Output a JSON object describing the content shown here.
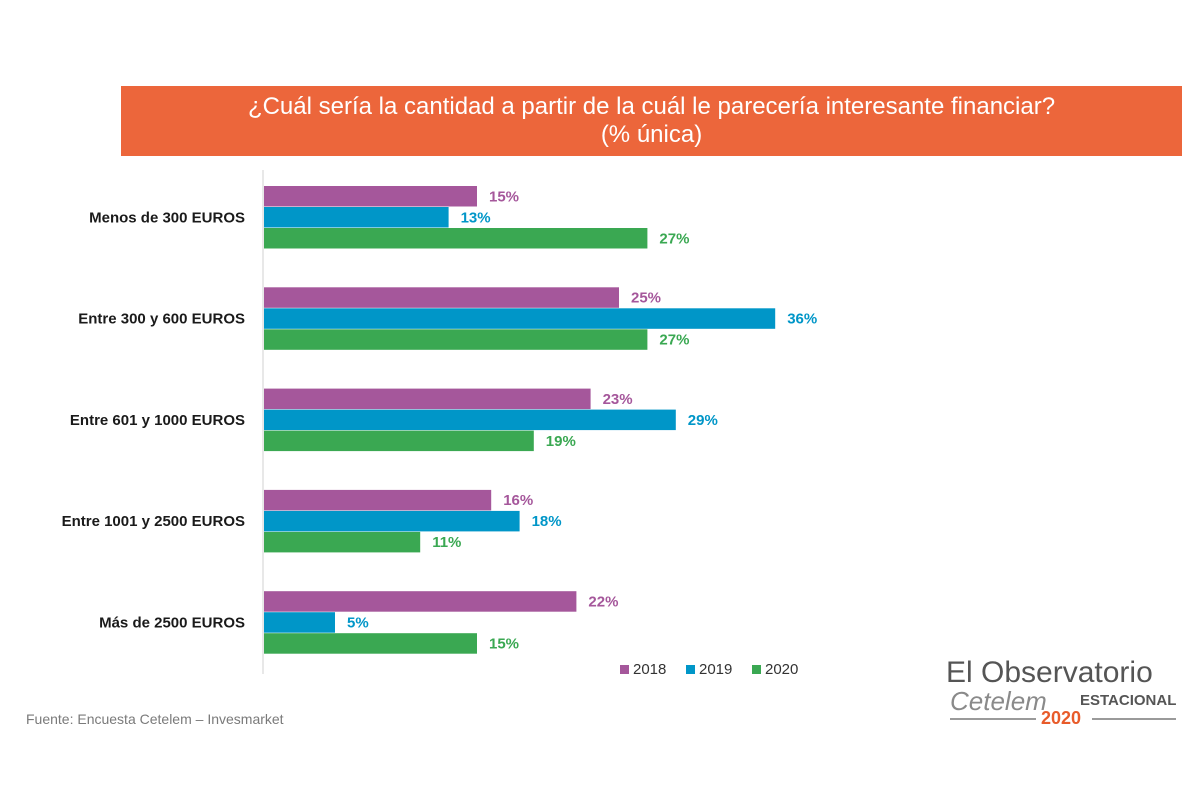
{
  "header": {
    "title_line1": "¿Cuál sería la cantidad a partir de la cuál le parecería interesante financiar?",
    "title_line2": "(% única)"
  },
  "source": "Fuente: Encuesta Cetelem – Invesmarket",
  "logo": {
    "line1": "El Observatorio",
    "line2": "Cetelem",
    "line3": "ESTACIONAL",
    "year": "2020"
  },
  "colors": {
    "banner": "#ec663b",
    "s2018": "#a5579b",
    "s2019": "#0096c8",
    "s2020": "#3aa852"
  },
  "chart_data": {
    "type": "bar",
    "orientation": "horizontal",
    "categories": [
      "Menos de 300 EUROS",
      "Entre 300 y 600 EUROS",
      "Entre 601 y 1000 EUROS",
      "Entre 1001 y 2500 EUROS",
      "Más de 2500 EUROS"
    ],
    "series": [
      {
        "name": "2018",
        "values": [
          15,
          25,
          23,
          16,
          22
        ],
        "labels": [
          "15%",
          "25%",
          "23%",
          "16%",
          "22%"
        ],
        "color": "#a5579b"
      },
      {
        "name": "2019",
        "values": [
          13,
          36,
          29,
          18,
          5
        ],
        "labels": [
          "13%",
          "36%",
          "29%",
          "18%",
          "5%"
        ],
        "color": "#0096c8"
      },
      {
        "name": "2020",
        "values": [
          27,
          27,
          19,
          11,
          15
        ],
        "labels": [
          "27%",
          "27%",
          "19%",
          "11%",
          "15%"
        ],
        "color": "#3aa852"
      }
    ],
    "legend_position": "bottom-right",
    "grid": false
  }
}
